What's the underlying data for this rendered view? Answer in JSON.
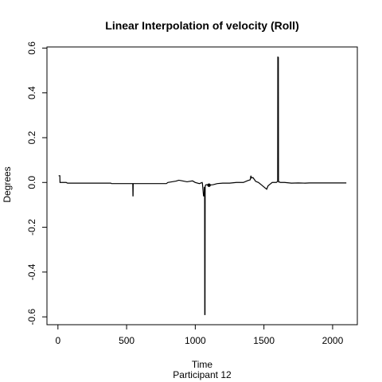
{
  "chart_data": {
    "type": "line",
    "title": "Linear Interpolation of velocity (Roll)",
    "xlabel": "Time",
    "subtitle": "Participant  12",
    "ylabel": "Degrees",
    "xlim": [
      -80,
      2180
    ],
    "ylim": [
      -0.635,
      0.605
    ],
    "x_ticks": [
      0,
      500,
      1000,
      1500,
      2000
    ],
    "x_tick_labels": [
      "0",
      "500",
      "1000",
      "1500",
      "2000"
    ],
    "y_ticks": [
      -0.6,
      -0.4,
      -0.2,
      0.0,
      0.2,
      0.4,
      0.6
    ],
    "y_tick_labels": [
      "-0.6",
      "-0.4",
      "-0.2",
      "0.0",
      "0.2",
      "0.4",
      "0.6"
    ],
    "grid": false,
    "legend": "none",
    "series": [
      {
        "color": "#000000",
        "x": [
          5,
          14,
          15,
          60,
          70,
          385,
          390,
          545,
          546,
          547,
          548,
          790,
          800,
          830,
          860,
          880,
          900,
          940,
          980,
          1000,
          1030,
          1050,
          1052,
          1060,
          1065,
          1066,
          1067,
          1068,
          1069,
          1070,
          1071,
          1072,
          1073,
          1078,
          1085,
          1100,
          1130,
          1160,
          1200,
          1250,
          1300,
          1350,
          1380,
          1400,
          1405,
          1410,
          1420,
          1440,
          1460,
          1480,
          1500,
          1520,
          1530,
          1540,
          1560,
          1590,
          1600,
          1601,
          1602,
          1603,
          1604,
          1605,
          1606,
          1607,
          1608,
          1609,
          1610,
          1620,
          1650,
          1700,
          1750,
          1800,
          1830,
          1850,
          1900,
          2000,
          2100
        ],
        "y": [
          0.03,
          0.03,
          0.0,
          0.0,
          -0.003,
          -0.003,
          -0.005,
          -0.005,
          -0.06,
          -0.06,
          -0.005,
          -0.005,
          0.0,
          0.003,
          0.006,
          0.01,
          0.008,
          0.003,
          0.007,
          0.0,
          -0.005,
          0.0,
          -0.004,
          -0.06,
          -0.06,
          -0.02,
          -0.06,
          -0.02,
          -0.59,
          -0.59,
          -0.59,
          -0.02,
          -0.015,
          -0.01,
          -0.01,
          -0.012,
          -0.01,
          -0.005,
          -0.003,
          -0.003,
          0.0,
          0.0,
          0.008,
          0.012,
          0.03,
          0.02,
          0.022,
          0.005,
          0.0,
          -0.01,
          -0.02,
          -0.03,
          -0.015,
          -0.01,
          0.0,
          0.0,
          0.005,
          0.56,
          0.56,
          0.28,
          0.28,
          0.56,
          0.005,
          0.003,
          0.002,
          0.002,
          0.003,
          0.0,
          0.0,
          -0.003,
          -0.002,
          -0.003,
          -0.002,
          -0.002,
          -0.002,
          -0.002,
          -0.002
        ]
      }
    ],
    "markers": [
      {
        "x": 1100,
        "y": -0.012
      }
    ]
  }
}
